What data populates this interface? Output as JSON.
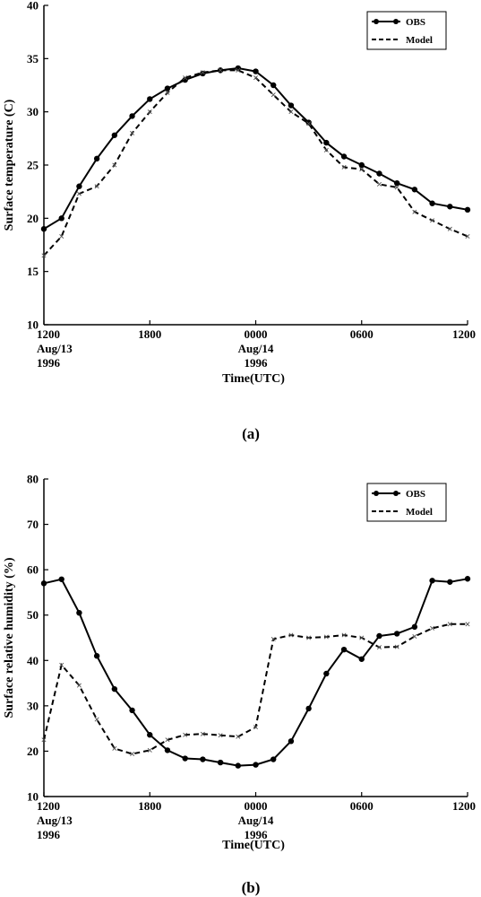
{
  "chart_data": [
    {
      "type": "line",
      "panel_label": "(a)",
      "title": "",
      "ylabel": "Surface temperature (C)",
      "xlabel": "Time(UTC)",
      "ylim": [
        10,
        40
      ],
      "yticks": [
        10,
        15,
        20,
        25,
        30,
        35,
        40
      ],
      "xlim": [
        0,
        24
      ],
      "xticks": [
        {
          "x": 0,
          "lines": [
            "1200",
            "Aug/13",
            "1996"
          ]
        },
        {
          "x": 6,
          "lines": [
            "1800"
          ]
        },
        {
          "x": 12,
          "lines": [
            "0000",
            "Aug/14",
            "1996"
          ]
        },
        {
          "x": 18,
          "lines": [
            "0600"
          ]
        },
        {
          "x": 24,
          "lines": [
            "1200"
          ]
        }
      ],
      "legend_position": "top-right",
      "series": [
        {
          "name": "OBS",
          "style": "solid-dots",
          "x": [
            0,
            1,
            2,
            3,
            4,
            5,
            6,
            7,
            8,
            9,
            10,
            11,
            12,
            13,
            14,
            15,
            16,
            17,
            18,
            19,
            20,
            21,
            22,
            23,
            24
          ],
          "values": [
            19.0,
            20.0,
            23.0,
            25.6,
            27.8,
            29.6,
            31.2,
            32.2,
            33.0,
            33.6,
            33.9,
            34.1,
            33.8,
            32.5,
            30.6,
            29.0,
            27.1,
            25.8,
            25.0,
            24.2,
            23.3,
            22.7,
            21.4,
            21.1,
            20.8
          ]
        },
        {
          "name": "Model",
          "style": "dashed-crosses",
          "x": [
            0,
            1,
            2,
            3,
            4,
            5,
            6,
            7,
            8,
            9,
            10,
            11,
            12,
            13,
            14,
            15,
            16,
            17,
            18,
            19,
            20,
            21,
            22,
            23,
            24
          ],
          "values": [
            16.5,
            18.3,
            22.3,
            23.0,
            25.0,
            28.0,
            30.0,
            31.8,
            33.2,
            33.7,
            33.9,
            33.9,
            33.2,
            31.6,
            30.0,
            28.9,
            26.4,
            24.8,
            24.6,
            23.2,
            22.9,
            20.6,
            19.8,
            19.0,
            18.3
          ]
        }
      ]
    },
    {
      "type": "line",
      "panel_label": "(b)",
      "title": "",
      "ylabel": "Surface relative humidity (%)",
      "xlabel": "Time(UTC)",
      "ylim": [
        10,
        80
      ],
      "yticks": [
        10,
        20,
        30,
        40,
        50,
        60,
        70,
        80
      ],
      "xlim": [
        0,
        24
      ],
      "xticks": [
        {
          "x": 0,
          "lines": [
            "1200",
            "Aug/13",
            "1996"
          ]
        },
        {
          "x": 6,
          "lines": [
            "1800"
          ]
        },
        {
          "x": 12,
          "lines": [
            "0000",
            "Aug/14",
            "1996"
          ]
        },
        {
          "x": 18,
          "lines": [
            "0600"
          ]
        },
        {
          "x": 24,
          "lines": [
            "1200"
          ]
        }
      ],
      "legend_position": "top-right",
      "series": [
        {
          "name": "OBS",
          "style": "solid-dots",
          "x": [
            0,
            1,
            2,
            3,
            4,
            5,
            6,
            7,
            8,
            9,
            10,
            11,
            12,
            13,
            14,
            15,
            16,
            17,
            18,
            19,
            20,
            21,
            22,
            23,
            24
          ],
          "values": [
            57.0,
            57.9,
            50.5,
            41.0,
            33.7,
            29.0,
            23.6,
            20.2,
            18.4,
            18.2,
            17.5,
            16.8,
            17.0,
            18.2,
            22.2,
            29.4,
            37.1,
            42.4,
            40.3,
            45.4,
            45.9,
            47.4,
            57.6,
            57.3,
            58.0
          ]
        },
        {
          "name": "Model",
          "style": "dashed-crosses",
          "x": [
            0,
            1,
            2,
            3,
            4,
            5,
            6,
            7,
            8,
            9,
            10,
            11,
            12,
            13,
            14,
            15,
            16,
            17,
            18,
            19,
            20,
            21,
            22,
            23,
            24
          ],
          "values": [
            22.5,
            39.0,
            34.5,
            27.0,
            20.6,
            19.4,
            20.2,
            22.5,
            23.6,
            23.8,
            23.5,
            23.2,
            25.3,
            44.7,
            45.6,
            45.0,
            45.2,
            45.6,
            45.0,
            42.9,
            43.0,
            45.3,
            47.1,
            48.0,
            48.0
          ]
        }
      ]
    }
  ]
}
